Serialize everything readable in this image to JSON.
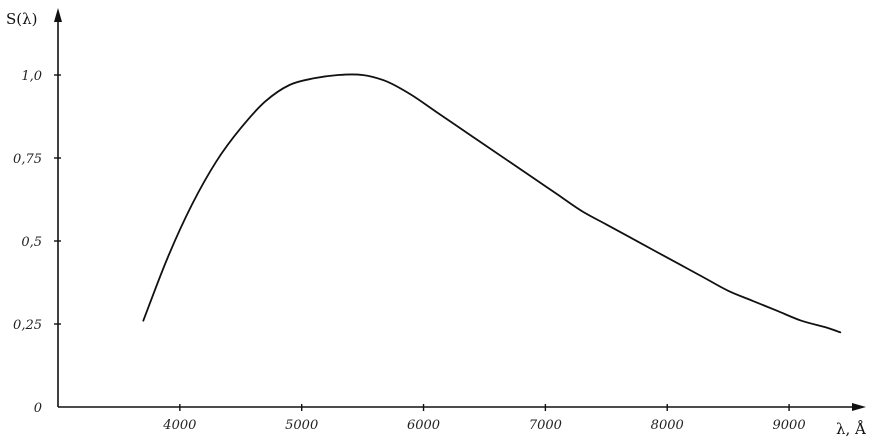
{
  "chart_data": {
    "type": "line",
    "title": "",
    "xlabel": "λ, Å",
    "ylabel": "S(λ)",
    "xlim": [
      3000,
      9500
    ],
    "ylim": [
      0,
      1.0
    ],
    "x_ticks": [
      4000,
      5000,
      6000,
      7000,
      8000,
      9000
    ],
    "x_tick_labels": [
      "4000",
      "5000",
      "6000",
      "7000",
      "8000",
      "9000"
    ],
    "y_ticks": [
      0,
      0.25,
      0.5,
      0.75,
      1.0
    ],
    "y_tick_labels": [
      "0",
      "0,25",
      "0,5",
      "0,75",
      "1,0"
    ],
    "grid": false,
    "series": [
      {
        "x": [
          3700,
          3900,
          4100,
          4300,
          4500,
          4700,
          4900,
          5100,
          5300,
          5500,
          5700,
          5900,
          6100,
          6300,
          6500,
          6700,
          6900,
          7100,
          7300,
          7500,
          7700,
          7900,
          8100,
          8300,
          8500,
          8700,
          8900,
          9100,
          9300,
          9420
        ],
        "y": [
          0.26,
          0.45,
          0.61,
          0.74,
          0.84,
          0.92,
          0.97,
          0.99,
          1.0,
          1.0,
          0.98,
          0.94,
          0.89,
          0.84,
          0.79,
          0.74,
          0.69,
          0.64,
          0.59,
          0.55,
          0.51,
          0.47,
          0.43,
          0.39,
          0.35,
          0.32,
          0.29,
          0.26,
          0.24,
          0.225
        ]
      }
    ]
  }
}
